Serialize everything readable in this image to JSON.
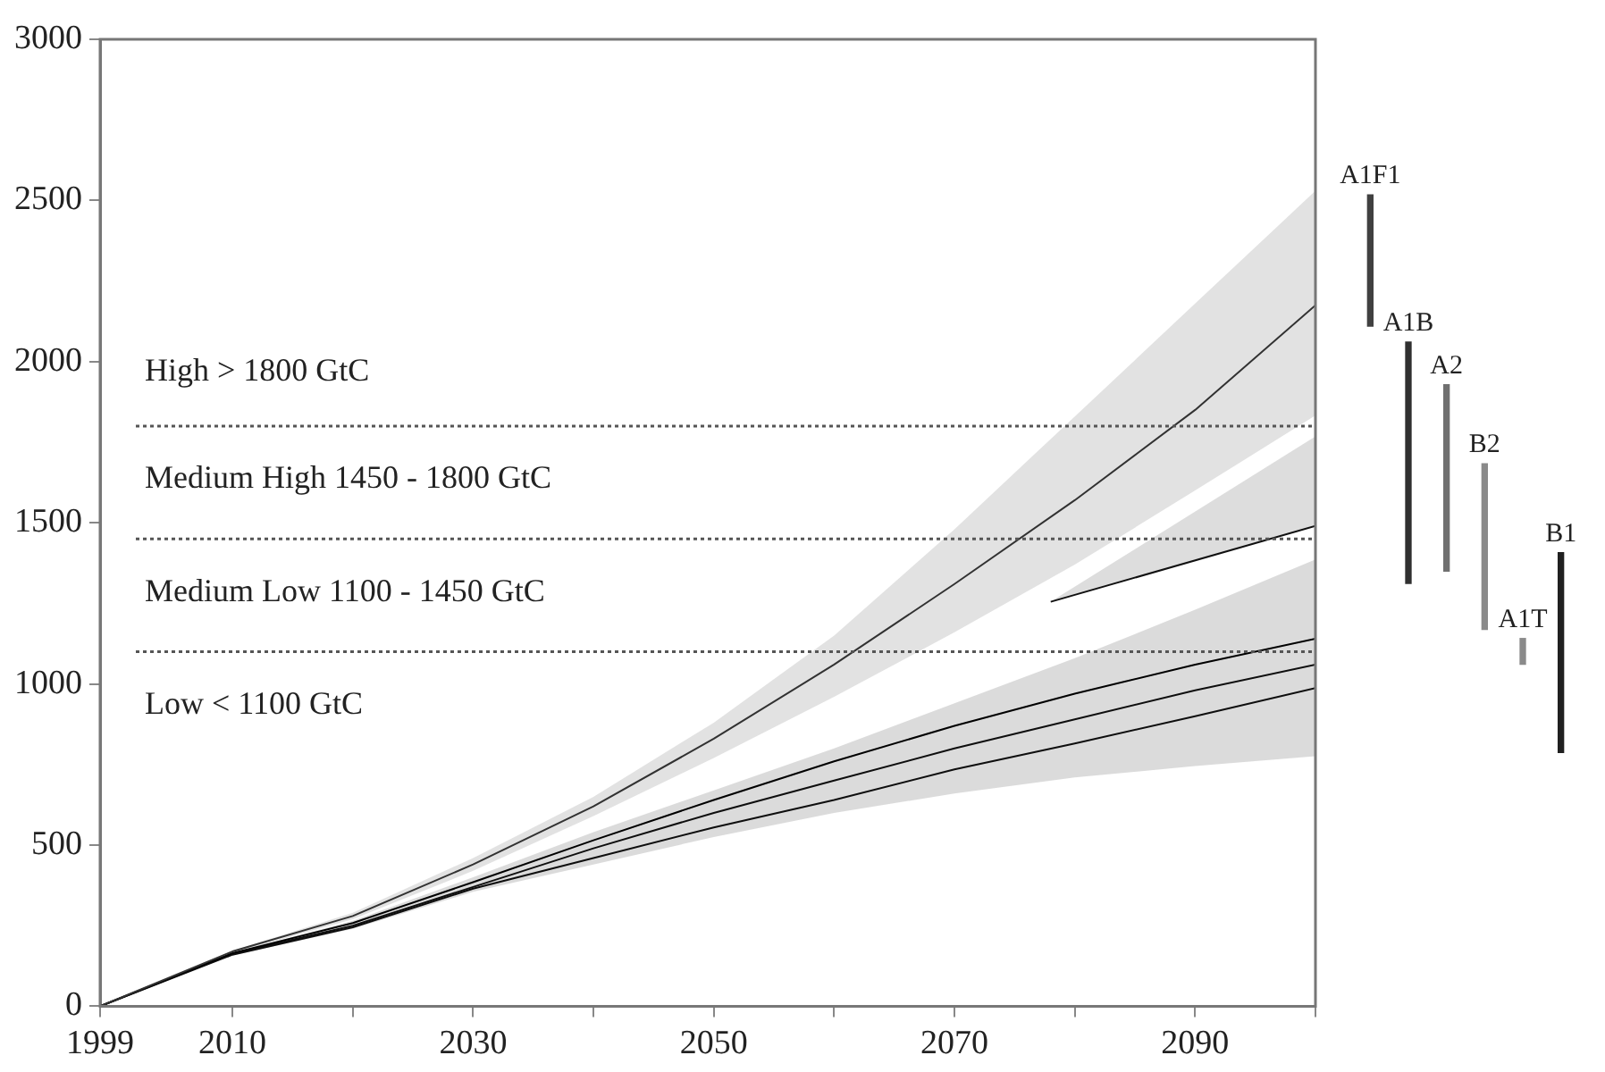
{
  "chart_data": [
    {
      "type": "line",
      "x": [
        1999,
        2010,
        2020,
        2030,
        2040,
        2050,
        2060,
        2070,
        2080,
        2090,
        2100
      ],
      "xlim": [
        1999,
        2100
      ],
      "xticks": [
        1999,
        2010,
        {
          "value": 2020,
          "label": null
        },
        2030,
        {
          "value": 2040,
          "label": null
        },
        2050,
        {
          "value": 2060,
          "label": null
        },
        2070,
        {
          "value": 2080,
          "label": null
        },
        2090,
        {
          "value": 2100,
          "label": null
        }
      ],
      "ylim": [
        0,
        3000
      ],
      "yticks": [
        0,
        500,
        1000,
        1500,
        2000,
        2500,
        3000
      ],
      "grid": false,
      "legend": false,
      "series": [
        {
          "color": "#333333",
          "values": [
            0,
            170,
            280,
            440,
            620,
            830,
            1060,
            1310,
            1570,
            1850,
            2175
          ],
          "upper": [
            0,
            172,
            290,
            460,
            650,
            880,
            1150,
            1480,
            1830,
            2180,
            2530
          ],
          "lower": [
            0,
            165,
            270,
            420,
            590,
            770,
            960,
            1160,
            1370,
            1600,
            1833
          ]
        },
        {
          "color": "#111111",
          "x": [
            2078,
            2100
          ],
          "values": [
            1255,
            1490
          ],
          "upper": [
            1255,
            1768
          ],
          "lower": [
            1255,
            1490
          ]
        },
        {
          "color": "#000000",
          "values": [
            0,
            165,
            258,
            385,
            515,
            640,
            760,
            870,
            970,
            1060,
            1140
          ],
          "upper": [
            0,
            165,
            265,
            400,
            540,
            670,
            800,
            940,
            1080,
            1230,
            1386
          ],
          "lower": [
            0,
            158,
            240,
            355,
            440,
            525,
            600,
            660,
            710,
            745,
            776
          ]
        },
        {
          "color": "#111111",
          "values": [
            0,
            163,
            250,
            370,
            490,
            600,
            700,
            800,
            890,
            980,
            1060
          ]
        },
        {
          "color": "#111111",
          "values": [
            0,
            160,
            245,
            365,
            460,
            555,
            640,
            735,
            815,
            900,
            987
          ]
        }
      ],
      "ref_lines": [
        {
          "axis": "y",
          "value": 1800,
          "color": "#555555",
          "line_style": "dotted"
        },
        {
          "axis": "y",
          "value": 1450,
          "color": "#555555",
          "line_style": "dotted"
        },
        {
          "axis": "y",
          "value": 1100,
          "color": "#555555",
          "line_style": "dotted"
        }
      ],
      "annotations": [
        "High > 1800 GtC",
        "Medium High 1450 - 1800 GtC",
        "Medium Low 1100 - 1450 GtC",
        "Low < 1100 GtC"
      ]
    },
    {
      "type": "bar",
      "categories": [
        "A1F1",
        "A1B",
        "A2",
        "B2",
        "A1T",
        "B1"
      ],
      "values": [
        407,
        749,
        578,
        514,
        80,
        620
      ],
      "base": [
        2110,
        1312,
        1350,
        1169,
        1061,
        787
      ],
      "colors": [
        "#404040",
        "#303030",
        "#707070",
        "#8a8a8a",
        "#8a8a8a",
        "#202020"
      ],
      "ylim": [
        0,
        3000
      ],
      "tick_labels": false
    }
  ]
}
